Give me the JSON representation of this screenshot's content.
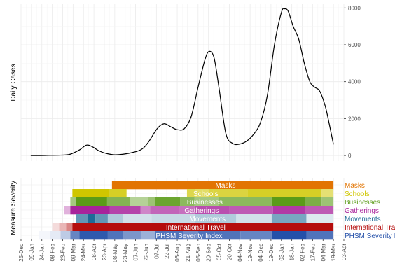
{
  "chart_data": [
    {
      "type": "line",
      "ylabel": "Daily Cases",
      "xlabel": "",
      "x_domain": [
        "2019-12-25",
        "2021-04-03"
      ],
      "ylim": [
        -300,
        8200
      ],
      "yticks": [
        0,
        2000,
        4000,
        6000,
        8000
      ],
      "ytick_labels": [
        "0",
        "2000",
        "4000",
        "6000",
        "8000"
      ],
      "grid": true,
      "series": [
        {
          "color": "#000000",
          "x": [
            "2020-01-08",
            "2020-01-22",
            "2020-02-05",
            "2020-02-19",
            "2020-03-04",
            "2020-03-18",
            "2020-03-28",
            "2020-04-05",
            "2020-04-15",
            "2020-04-25",
            "2020-05-08",
            "2020-05-20",
            "2020-06-01",
            "2020-06-15",
            "2020-06-25",
            "2020-07-08",
            "2020-07-18",
            "2020-07-28",
            "2020-08-06",
            "2020-08-16",
            "2020-08-26",
            "2020-09-05",
            "2020-09-15",
            "2020-09-21",
            "2020-09-28",
            "2020-10-05",
            "2020-10-15",
            "2020-10-25",
            "2020-11-04",
            "2020-11-14",
            "2020-11-24",
            "2020-12-04",
            "2020-12-14",
            "2020-12-24",
            "2021-01-03",
            "2021-01-08",
            "2021-01-13",
            "2021-01-20",
            "2021-01-28",
            "2021-02-05",
            "2021-02-13",
            "2021-02-20",
            "2021-02-27",
            "2021-03-07",
            "2021-03-13",
            "2021-03-19"
          ],
          "y": [
            0,
            0,
            10,
            20,
            60,
            300,
            560,
            490,
            260,
            120,
            40,
            70,
            150,
            320,
            700,
            1450,
            1720,
            1550,
            1400,
            1450,
            2100,
            3700,
            5200,
            5640,
            5300,
            3700,
            1200,
            650,
            620,
            780,
            1150,
            1800,
            3300,
            6000,
            7750,
            7950,
            7800,
            7000,
            6300,
            5000,
            4000,
            3700,
            3500,
            2700,
            1700,
            600
          ]
        }
      ]
    },
    {
      "type": "heatmap",
      "ylabel": "Measure Severity",
      "x_domain": [
        "2019-12-25",
        "2021-04-03"
      ],
      "xtick_labels": [
        "25-Dec",
        "09-Jan",
        "24-Jan",
        "08-Feb",
        "23-Feb",
        "09-Mar",
        "24-Mar",
        "08-Apr",
        "23-Apr",
        "08-May",
        "23-May",
        "07-Jun",
        "22-Jun",
        "07-Jul",
        "22-Jul",
        "06-Aug",
        "21-Aug",
        "05-Sep",
        "20-Sep",
        "05-Oct",
        "20-Oct",
        "04-Nov",
        "19-Nov",
        "04-Dec",
        "19-Dec",
        "03-Jan",
        "18-Jan",
        "02-Feb",
        "17-Feb",
        "04-Mar",
        "19-Mar",
        "03-Apr"
      ],
      "rows": [
        {
          "label": "Masks",
          "color": "#e27402",
          "segments": [
            {
              "start": "2020-05-04",
              "end": "2021-03-19",
              "level": 1.0
            }
          ]
        },
        {
          "label": "Schools",
          "color": "#cfc600",
          "segments": [
            {
              "start": "2020-03-08",
              "end": "2020-04-30",
              "level": 1.0
            },
            {
              "start": "2020-04-30",
              "end": "2020-05-25",
              "level": 0.85
            },
            {
              "start": "2020-08-20",
              "end": "2020-09-01",
              "level": 0.7
            },
            {
              "start": "2020-09-01",
              "end": "2020-09-20",
              "level": 0.6
            },
            {
              "start": "2020-09-20",
              "end": "2020-11-15",
              "level": 0.75
            },
            {
              "start": "2020-11-15",
              "end": "2021-03-02",
              "level": 0.85
            },
            {
              "start": "2021-03-02",
              "end": "2021-03-19",
              "level": 0.55
            }
          ]
        },
        {
          "label": "Businesses",
          "color": "#5b9b18",
          "segments": [
            {
              "start": "2020-03-05",
              "end": "2020-03-13",
              "level": 0.55
            },
            {
              "start": "2020-03-13",
              "end": "2020-04-27",
              "level": 1.0
            },
            {
              "start": "2020-04-27",
              "end": "2020-05-30",
              "level": 0.75
            },
            {
              "start": "2020-05-30",
              "end": "2020-06-25",
              "level": 0.45
            },
            {
              "start": "2020-06-25",
              "end": "2020-07-05",
              "level": 0.6
            },
            {
              "start": "2020-07-05",
              "end": "2020-08-10",
              "level": 0.9
            },
            {
              "start": "2020-08-10",
              "end": "2020-08-31",
              "level": 0.7
            },
            {
              "start": "2020-08-31",
              "end": "2020-10-05",
              "level": 0.55
            },
            {
              "start": "2020-10-05",
              "end": "2020-12-20",
              "level": 0.7
            },
            {
              "start": "2020-12-20",
              "end": "2021-02-06",
              "level": 1.0
            },
            {
              "start": "2021-02-06",
              "end": "2021-03-02",
              "level": 0.8
            },
            {
              "start": "2021-03-02",
              "end": "2021-03-19",
              "level": 0.6
            }
          ]
        },
        {
          "label": "Gatherings",
          "color": "#a8239b",
          "segments": [
            {
              "start": "2020-02-25",
              "end": "2020-03-05",
              "level": 0.35
            },
            {
              "start": "2020-03-05",
              "end": "2020-05-01",
              "level": 1.0
            },
            {
              "start": "2020-05-01",
              "end": "2020-06-14",
              "level": 0.85
            },
            {
              "start": "2020-06-14",
              "end": "2020-06-28",
              "level": 0.55
            },
            {
              "start": "2020-06-28",
              "end": "2020-08-09",
              "level": 0.7
            },
            {
              "start": "2020-08-09",
              "end": "2020-08-31",
              "level": 0.65
            },
            {
              "start": "2020-08-31",
              "end": "2020-10-20",
              "level": 0.8
            },
            {
              "start": "2020-10-20",
              "end": "2020-12-22",
              "level": 0.75
            },
            {
              "start": "2020-12-22",
              "end": "2021-02-06",
              "level": 0.9
            },
            {
              "start": "2021-02-06",
              "end": "2021-03-19",
              "level": 0.75
            }
          ]
        },
        {
          "label": "Movements",
          "color": "#1e6b97",
          "segments": [
            {
              "start": "2020-03-13",
              "end": "2020-03-30",
              "level": 0.7
            },
            {
              "start": "2020-03-30",
              "end": "2020-04-10",
              "level": 1.0
            },
            {
              "start": "2020-04-10",
              "end": "2020-04-28",
              "level": 0.7
            },
            {
              "start": "2020-04-28",
              "end": "2020-05-20",
              "level": 0.35
            },
            {
              "start": "2020-05-20",
              "end": "2020-06-30",
              "level": 0.2
            },
            {
              "start": "2020-06-30",
              "end": "2020-09-01",
              "level": 0.25
            },
            {
              "start": "2020-09-01",
              "end": "2020-10-30",
              "level": 0.35
            },
            {
              "start": "2020-10-30",
              "end": "2020-12-20",
              "level": 0.2
            },
            {
              "start": "2020-12-20",
              "end": "2021-02-08",
              "level": 0.6
            },
            {
              "start": "2021-02-08",
              "end": "2021-03-19",
              "level": 0.15
            }
          ]
        },
        {
          "label": "International Travel",
          "color": "#b50d0d",
          "segments": [
            {
              "start": "2020-02-08",
              "end": "2020-02-18",
              "level": 0.15
            },
            {
              "start": "2020-02-18",
              "end": "2020-02-28",
              "level": 0.3
            },
            {
              "start": "2020-02-28",
              "end": "2020-03-08",
              "level": 0.5
            },
            {
              "start": "2020-03-08",
              "end": "2021-03-19",
              "level": 1.0
            }
          ]
        },
        {
          "label": "PHSM Severity Index",
          "color": "#2450a9",
          "segments": [
            {
              "start": "2020-01-20",
              "end": "2020-02-05",
              "level": 0.05
            },
            {
              "start": "2020-02-05",
              "end": "2020-02-20",
              "level": 0.12
            },
            {
              "start": "2020-02-20",
              "end": "2020-03-05",
              "level": 0.3
            },
            {
              "start": "2020-03-05",
              "end": "2020-03-18",
              "level": 0.7
            },
            {
              "start": "2020-03-18",
              "end": "2020-04-28",
              "level": 0.95
            },
            {
              "start": "2020-04-28",
              "end": "2020-05-20",
              "level": 0.8
            },
            {
              "start": "2020-05-20",
              "end": "2020-06-15",
              "level": 0.6
            },
            {
              "start": "2020-06-15",
              "end": "2020-07-05",
              "level": 0.45
            },
            {
              "start": "2020-07-05",
              "end": "2020-08-15",
              "level": 0.8
            },
            {
              "start": "2020-08-15",
              "end": "2020-09-05",
              "level": 0.65
            },
            {
              "start": "2020-09-05",
              "end": "2020-11-05",
              "level": 0.8
            },
            {
              "start": "2020-11-05",
              "end": "2020-12-20",
              "level": 0.7
            },
            {
              "start": "2020-12-20",
              "end": "2021-02-08",
              "level": 1.0
            },
            {
              "start": "2021-02-08",
              "end": "2021-03-19",
              "level": 0.8
            }
          ]
        }
      ]
    }
  ]
}
